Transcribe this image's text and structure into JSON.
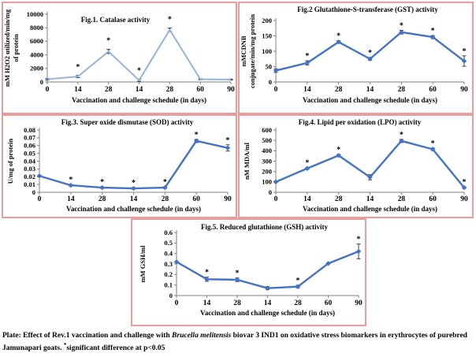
{
  "caption": {
    "prefix": "Plate: Effect of Rev.1 vaccination and challenge with ",
    "species": "Brucella melitensis",
    "middle": " biovar 3 IND1 on oxidative stress biomarkers in erythrocytes of purebred Jamunapari goats. ",
    "sig_mark": "*",
    "sig_text": "significant difference at p<0.05"
  },
  "colors": {
    "panel_border": "#E89C9C",
    "axis": "#808080",
    "fig1_line": "#95B3D7",
    "main_line": "#4472C4",
    "error_bar": "#3F3F3F"
  },
  "chart_data": [
    {
      "id": "fig1",
      "type": "line",
      "title": "Fig.1. Catalase activity",
      "xlabel": "Vaccination and challenge schedule (in days)",
      "ylabel": "mM H2O2 utilized/min/mg of protein",
      "ylabel_lines": [
        "mM H2O2 utilized/min/mg",
        "of protein"
      ],
      "categories": [
        "0",
        "14",
        "28",
        "14",
        "28",
        "60",
        "90"
      ],
      "values": [
        400,
        800,
        4500,
        250,
        7700,
        400,
        350
      ],
      "errors": [
        100,
        150,
        300,
        150,
        250,
        80,
        80
      ],
      "stars": [
        false,
        true,
        true,
        true,
        true,
        false,
        false
      ],
      "y_ticks": [
        0,
        2000,
        4000,
        6000,
        8000,
        10000
      ],
      "y_tick_labels": [
        "0",
        "2000",
        "4000",
        "6000",
        "8000",
        "10000"
      ],
      "ylim": [
        0,
        10000
      ],
      "line_color": "#95B3D7",
      "error_color": "#17375E",
      "marker": "dash"
    },
    {
      "id": "fig2",
      "type": "line",
      "title": "Fig.2 Glutathione-S-transferase (GST) activity",
      "xlabel": "Vaccination and challenge schedule (in days)",
      "ylabel": "mMCDNB conjugate/min/mg protein",
      "ylabel_lines": [
        "mMCDNB",
        "conjugate/min/mg protein"
      ],
      "categories": [
        "0",
        "14",
        "28",
        "14",
        "28",
        "60",
        "90"
      ],
      "values": [
        37,
        62,
        130,
        75,
        162,
        146,
        68
      ],
      "errors": [
        6,
        7,
        4,
        4,
        6,
        5,
        17
      ],
      "stars": [
        false,
        true,
        true,
        true,
        true,
        true,
        true
      ],
      "y_ticks": [
        0,
        50,
        100,
        150,
        200
      ],
      "y_tick_labels": [
        "0",
        "50",
        "100",
        "150",
        "200"
      ],
      "ylim": [
        0,
        200
      ],
      "line_color": "#4472C4",
      "error_color": "#3F3F3F",
      "marker": "diamond"
    },
    {
      "id": "fig3",
      "type": "line",
      "title": "Fig.3. Super oxide dismutase (SOD) activity",
      "xlabel": "Vaccination and challenge schedule (in days)",
      "ylabel": "U/mg of protein",
      "ylabel_lines": [
        "U/mg of protein"
      ],
      "categories": [
        "0",
        "14",
        "28",
        "14",
        "28",
        "60",
        "90"
      ],
      "values": [
        0.021,
        0.009,
        0.006,
        0.005,
        0.006,
        0.066,
        0.057
      ],
      "errors": [
        0.001,
        0.001,
        0.001,
        0.001,
        0.001,
        0.002,
        0.004
      ],
      "stars": [
        false,
        true,
        true,
        true,
        true,
        true,
        true
      ],
      "y_ticks": [
        0,
        0.01,
        0.02,
        0.03,
        0.04,
        0.05,
        0.06,
        0.07,
        0.08
      ],
      "y_tick_labels": [
        "0",
        "0.01",
        "0.02",
        "0.03",
        "0.04",
        "0.05",
        "0.06",
        "0.07",
        "0.08"
      ],
      "ylim": [
        0,
        0.08
      ],
      "line_color": "#4472C4",
      "error_color": "#3F3F3F",
      "marker": "diamond"
    },
    {
      "id": "fig4",
      "type": "line",
      "title": "Fig.4. Lipid per oxidation (LPO) activity",
      "xlabel": "Vaccination and challenge schedule (in days)",
      "ylabel": "nM MDA/ml",
      "ylabel_lines": [
        "nM MDA/ml"
      ],
      "categories": [
        "0",
        "14",
        "28",
        "14",
        "28",
        "60",
        "90"
      ],
      "values": [
        100,
        230,
        355,
        145,
        495,
        415,
        45
      ],
      "errors": [
        8,
        10,
        10,
        25,
        15,
        12,
        8
      ],
      "stars": [
        false,
        true,
        true,
        false,
        true,
        true,
        true
      ],
      "y_ticks": [
        0,
        100,
        200,
        300,
        400,
        500,
        600
      ],
      "y_tick_labels": [
        "0",
        "100",
        "200",
        "300",
        "400",
        "500",
        "600"
      ],
      "ylim": [
        0,
        600
      ],
      "line_color": "#4472C4",
      "error_color": "#3F3F3F",
      "marker": "diamond"
    },
    {
      "id": "fig5",
      "type": "line",
      "title": "Fig.5. Reduced glutathione (GSH) activity",
      "xlabel": "Vaccination and challenge schedule (in days)",
      "ylabel": "mM GSH/ml",
      "ylabel_lines": [
        "mM GSH/ml"
      ],
      "categories": [
        "0",
        "14",
        "28",
        "14",
        "28",
        "60",
        "90"
      ],
      "values": [
        0.32,
        0.155,
        0.15,
        0.07,
        0.085,
        0.305,
        0.42
      ],
      "errors": [
        0.005,
        0.02,
        0.018,
        0.015,
        0.012,
        0.006,
        0.07
      ],
      "stars": [
        false,
        true,
        true,
        false,
        true,
        false,
        true
      ],
      "y_ticks": [
        0,
        0.1,
        0.2,
        0.3,
        0.4,
        0.5,
        0.6
      ],
      "y_tick_labels": [
        "0",
        "0.1",
        "0.2",
        "0.3",
        "0.4",
        "0.5",
        "0.6"
      ],
      "ylim": [
        0,
        0.6
      ],
      "line_color": "#4472C4",
      "error_color": "#3F3F3F",
      "marker": "diamond"
    }
  ]
}
